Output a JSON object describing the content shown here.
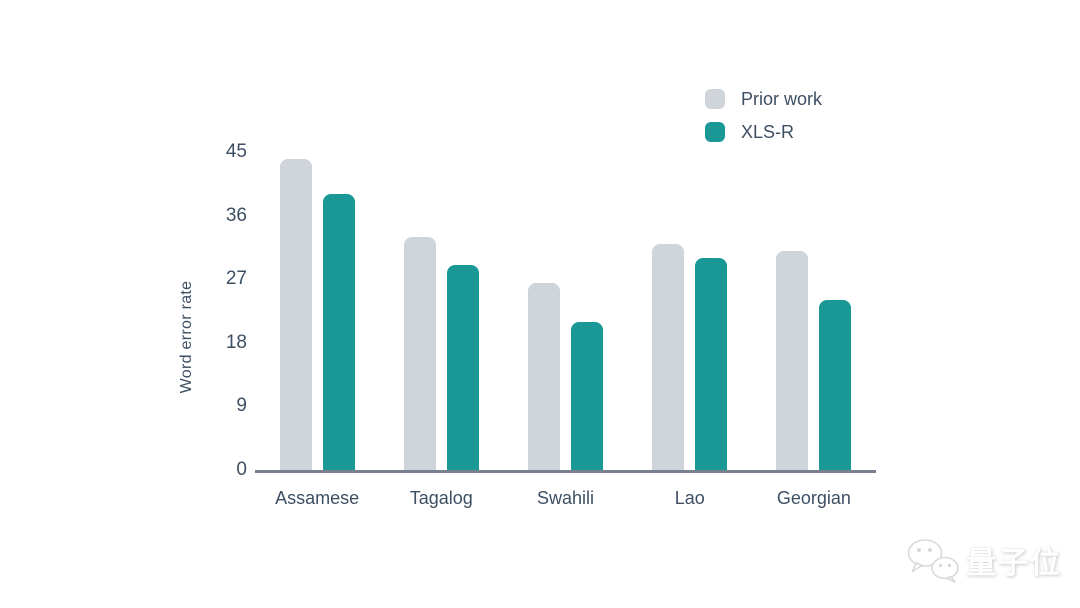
{
  "colors": {
    "prior_work": "#CFD5DA",
    "xlsr": "#1A9896",
    "text": "#3D4F63",
    "axis_line": "#79818E"
  },
  "legend": {
    "items": [
      {
        "label": "Prior work",
        "color": "#CFD5DA"
      },
      {
        "label": "XLS-R",
        "color": "#1A9896"
      }
    ]
  },
  "chart_data": {
    "type": "bar",
    "title": "",
    "xlabel": "",
    "ylabel": "Word error rate",
    "ylim": [
      0,
      45
    ],
    "yticks": [
      0,
      9,
      18,
      27,
      36,
      45
    ],
    "grid": false,
    "legend_position": "top-right",
    "categories": [
      "Assamese",
      "Tagalog",
      "Swahili",
      "Lao",
      "Georgian"
    ],
    "series": [
      {
        "name": "Prior work",
        "color": "#CFD5DA",
        "values": [
          44,
          33,
          26.5,
          32,
          31
        ]
      },
      {
        "name": "XLS-R",
        "color": "#1A9896",
        "values": [
          39,
          29,
          21,
          30,
          24
        ]
      }
    ]
  },
  "watermark": {
    "text": "量子位",
    "icon": "wechat-bubbles-icon"
  }
}
